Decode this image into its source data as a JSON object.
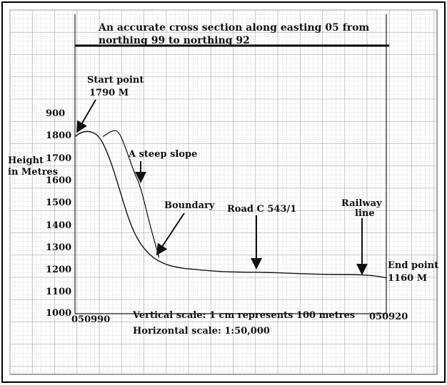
{
  "title_lines": [
    "An accurate cross section along easting 05 from",
    "northing 99 to northing 92"
  ],
  "y_axis_label_lines": [
    "Height",
    "in Metres"
  ],
  "y_ticks": [
    "900",
    "1800",
    "1700",
    "1600",
    "1500",
    "1400",
    "1300",
    "1200",
    "1100",
    "1000"
  ],
  "x_start_label": "050990",
  "x_end_label": "050920",
  "scale_text": {
    "vertical": "Vertical scale: 1 cm represents 100 metres",
    "horizontal": "Horizontal scale: 1:50,000"
  },
  "annotations": {
    "start_point": [
      "Start point",
      "1790 M"
    ],
    "steep_slope": "A steep slope",
    "boundary": "Boundary",
    "road": "Road C 543/1",
    "railway": [
      "Railway",
      "line"
    ],
    "end_point": [
      "End point",
      "1160 M"
    ]
  },
  "chart_data": {
    "type": "line",
    "ylabel": "Height in Metres",
    "ylim": [
      1000,
      1900
    ],
    "series": [
      {
        "x": [
          0,
          0.02,
          0.05,
          0.08,
          0.11,
          0.14,
          0.17,
          0.2,
          0.24,
          0.28,
          0.33,
          0.4,
          0.5,
          0.6,
          0.7,
          0.8,
          0.9,
          0.96,
          1.0
        ],
        "values": [
          1790,
          1810,
          1815,
          1790,
          1700,
          1570,
          1430,
          1330,
          1260,
          1225,
          1205,
          1195,
          1185,
          1185,
          1180,
          1175,
          1175,
          1170,
          1160
        ]
      },
      {
        "x": [
          0.09,
          0.12,
          0.14,
          0.16,
          0.19,
          0.21,
          0.24,
          0.27
        ],
        "values": [
          1790,
          1818,
          1815,
          1750,
          1630,
          1570,
          1400,
          1250
        ]
      }
    ]
  }
}
